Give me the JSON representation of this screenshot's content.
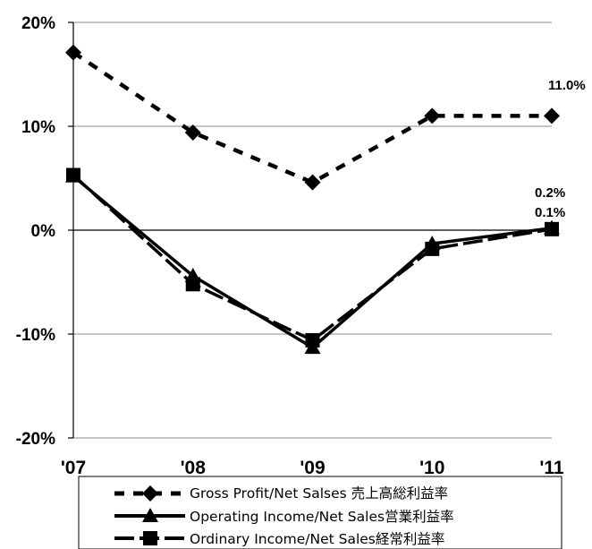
{
  "chart_data": {
    "type": "line",
    "categories": [
      "'07",
      "'08",
      "'09",
      "'10",
      "'11"
    ],
    "ylim": [
      -20,
      20
    ],
    "yticks": [
      "20%",
      "10%",
      "0%",
      "-10%",
      "-20%"
    ],
    "ytick_values": [
      20,
      10,
      0,
      -10,
      -20
    ],
    "grid": "horizontal",
    "legend_position": "bottom",
    "series": [
      {
        "name": "Gross Profit/Net Salses 売上高総利益率",
        "values": [
          17.1,
          9.4,
          4.6,
          11.0,
          11.0
        ],
        "marker": "diamond",
        "line_style": "dashed",
        "color": "#000000"
      },
      {
        "name": "Operating Income/Net Sales営業利益率",
        "values": [
          5.2,
          -4.4,
          -11.3,
          -1.3,
          0.2
        ],
        "marker": "triangle",
        "line_style": "solid",
        "color": "#000000"
      },
      {
        "name": "Ordinary Income/Net Sales経常利益率",
        "values": [
          5.3,
          -5.2,
          -10.6,
          -1.8,
          0.1
        ],
        "marker": "square",
        "line_style": "long-dash",
        "color": "#000000"
      }
    ],
    "annotations": [
      "11.0%",
      "0.2%",
      "0.1%"
    ]
  }
}
